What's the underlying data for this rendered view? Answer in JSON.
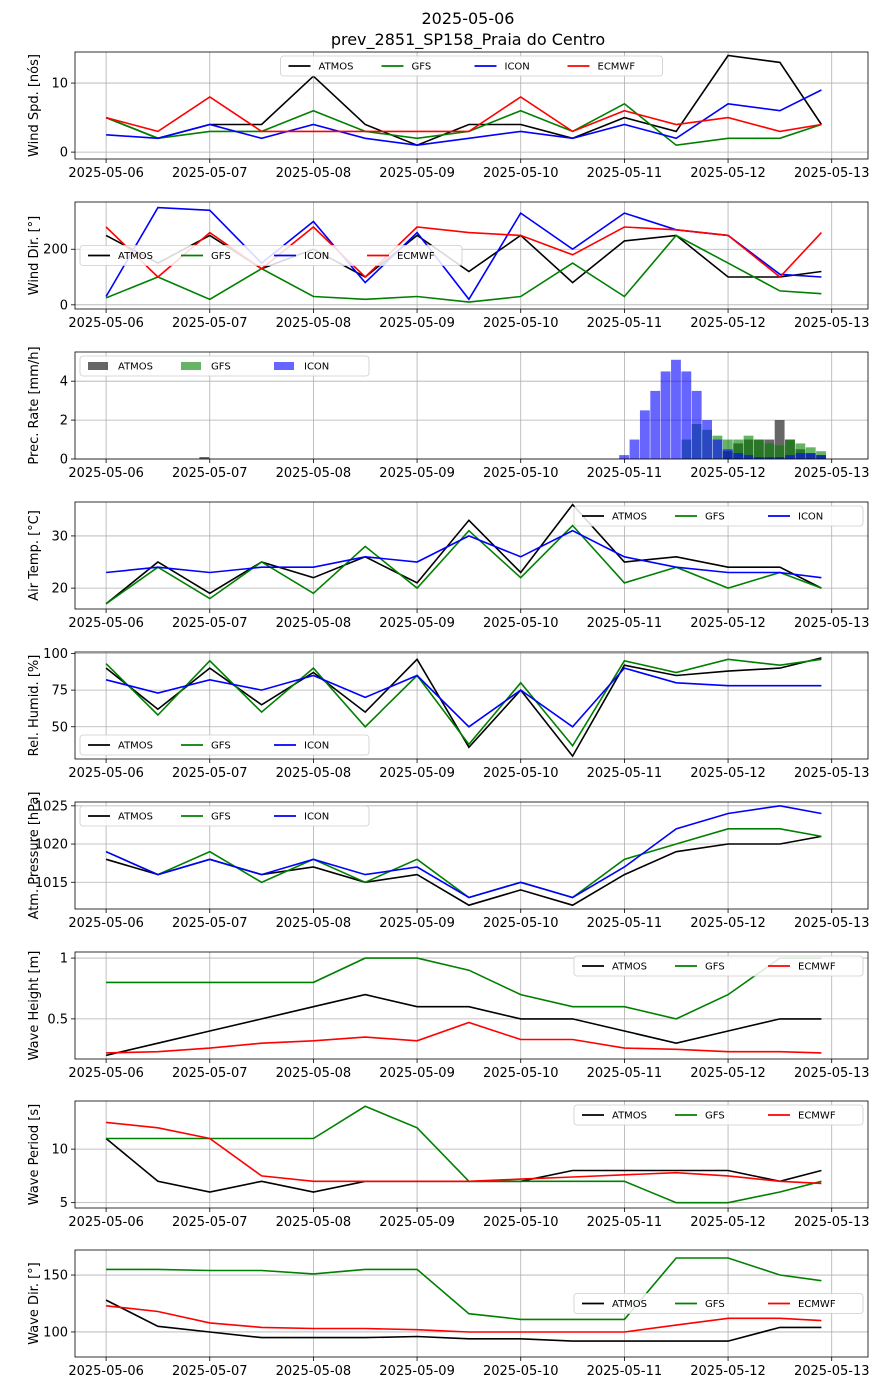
{
  "title": "2025-05-06",
  "subtitle": "prev_2851_SP158_Praia do Centro",
  "x_ticks": [
    "2025-05-06",
    "2025-05-07",
    "2025-05-08",
    "2025-05-09",
    "2025-05-10",
    "2025-05-11",
    "2025-05-12",
    "2025-05-13"
  ],
  "colors": {
    "ATMOS": "#000000",
    "GFS": "#008000",
    "ICON": "#0000ff",
    "ECMWF": "#ff0000"
  },
  "chart_data": [
    {
      "type": "line",
      "ylabel": "Wind Spd. [nós]",
      "ylim": [
        -1,
        14.5
      ],
      "yticks": [
        0,
        10
      ],
      "grid": true,
      "legend": "top-center",
      "x": [
        0,
        0.5,
        1,
        1.5,
        2,
        2.5,
        3,
        3.5,
        4,
        4.5,
        5,
        5.5,
        6,
        6.5,
        6.9
      ],
      "series": [
        {
          "name": "ATMOS",
          "values": [
            5,
            2,
            4,
            4,
            11,
            4,
            1,
            4,
            4,
            2,
            5,
            3,
            14,
            13,
            4
          ]
        },
        {
          "name": "GFS",
          "values": [
            5,
            2,
            3,
            3,
            6,
            3,
            2,
            3,
            6,
            3,
            7,
            1,
            2,
            2,
            4
          ]
        },
        {
          "name": "ICON",
          "values": [
            2.5,
            2,
            4,
            2,
            4,
            2,
            1,
            2,
            3,
            2,
            4,
            2,
            7,
            6,
            9
          ]
        },
        {
          "name": "ECMWF",
          "values": [
            5,
            3,
            8,
            3,
            3,
            3,
            3,
            3,
            8,
            3,
            6,
            4,
            5,
            3,
            4
          ]
        }
      ]
    },
    {
      "type": "line",
      "ylabel": "Wind Dir. [°]",
      "ylim": [
        -15,
        370
      ],
      "yticks": [
        0,
        200
      ],
      "grid": true,
      "legend": "middle-left",
      "x": [
        0,
        0.5,
        1,
        1.5,
        2,
        2.5,
        3,
        3.5,
        4,
        4.5,
        5,
        5.5,
        6,
        6.5,
        6.9
      ],
      "series": [
        {
          "name": "ATMOS",
          "values": [
            250,
            150,
            250,
            130,
            200,
            100,
            250,
            120,
            250,
            80,
            230,
            250,
            100,
            100,
            120
          ]
        },
        {
          "name": "GFS",
          "values": [
            25,
            100,
            20,
            130,
            30,
            20,
            30,
            10,
            30,
            150,
            30,
            250,
            150,
            50,
            40
          ]
        },
        {
          "name": "ICON",
          "values": [
            30,
            350,
            340,
            150,
            300,
            80,
            260,
            20,
            330,
            200,
            330,
            270,
            250,
            110,
            100
          ]
        },
        {
          "name": "ECMWF",
          "values": [
            280,
            100,
            260,
            130,
            280,
            100,
            280,
            260,
            250,
            180,
            280,
            270,
            250,
            100,
            260
          ]
        }
      ]
    },
    {
      "type": "bar",
      "ylabel": "Prec. Rate [mm/h]",
      "ylim": [
        0,
        5.5
      ],
      "yticks": [
        0,
        2,
        4
      ],
      "grid": true,
      "legend": "top-left",
      "x": [
        0.95,
        5.0,
        5.1,
        5.2,
        5.3,
        5.4,
        5.5,
        5.6,
        5.7,
        5.8,
        5.9,
        6.0,
        6.1,
        6.2,
        6.3,
        6.4,
        6.5,
        6.6,
        6.7,
        6.8,
        6.9
      ],
      "series": [
        {
          "name": "ATMOS",
          "values": [
            0.1,
            0,
            0,
            0,
            0,
            0,
            0,
            0,
            0,
            0,
            0,
            0.4,
            0.8,
            1.0,
            1.0,
            1.0,
            2.0,
            1.0,
            0.5,
            0.3,
            0.2
          ]
        },
        {
          "name": "GFS",
          "values": [
            0,
            0,
            0,
            0,
            0,
            0,
            0,
            1.0,
            1.8,
            1.5,
            1.2,
            1.0,
            1.0,
            1.2,
            1.0,
            0.8,
            0.7,
            1.0,
            0.8,
            0.6,
            0.4
          ]
        },
        {
          "name": "ICON",
          "values": [
            0,
            0.2,
            1.0,
            2.5,
            3.5,
            4.5,
            5.1,
            4.5,
            3.5,
            2.0,
            1.0,
            0.5,
            0.3,
            0.2,
            0.1,
            0.1,
            0.1,
            0.2,
            0.3,
            0.3,
            0.2
          ]
        }
      ]
    },
    {
      "type": "line",
      "ylabel": "Air Temp. [°C]",
      "ylim": [
        16,
        36.5
      ],
      "yticks": [
        20,
        30
      ],
      "grid": true,
      "legend": "top-right",
      "x": [
        0,
        0.5,
        1,
        1.5,
        2,
        2.5,
        3,
        3.5,
        4,
        4.5,
        5,
        5.5,
        6,
        6.5,
        6.9
      ],
      "series": [
        {
          "name": "ATMOS",
          "values": [
            17,
            25,
            19,
            25,
            22,
            26,
            21,
            33,
            23,
            36,
            25,
            26,
            24,
            24,
            20
          ]
        },
        {
          "name": "GFS",
          "values": [
            17,
            24,
            18,
            25,
            19,
            28,
            20,
            31,
            22,
            32,
            21,
            24,
            20,
            23,
            20
          ]
        },
        {
          "name": "ICON",
          "values": [
            23,
            24,
            23,
            24,
            24,
            26,
            25,
            30,
            26,
            31,
            26,
            24,
            23,
            23,
            22
          ]
        }
      ]
    },
    {
      "type": "line",
      "ylabel": "Rel. Humid. [%]",
      "ylim": [
        28,
        101
      ],
      "yticks": [
        50,
        75,
        100
      ],
      "grid": true,
      "legend": "bottom-left",
      "x": [
        0,
        0.5,
        1,
        1.5,
        2,
        2.5,
        3,
        3.5,
        4,
        4.5,
        5,
        5.5,
        6,
        6.5,
        6.9
      ],
      "series": [
        {
          "name": "ATMOS",
          "values": [
            90,
            62,
            90,
            65,
            87,
            60,
            96,
            36,
            75,
            30,
            92,
            85,
            88,
            90,
            97
          ]
        },
        {
          "name": "GFS",
          "values": [
            93,
            58,
            95,
            60,
            90,
            50,
            85,
            38,
            80,
            37,
            95,
            87,
            96,
            92,
            96
          ]
        },
        {
          "name": "ICON",
          "values": [
            82,
            73,
            82,
            75,
            85,
            70,
            85,
            50,
            75,
            50,
            90,
            80,
            78,
            78,
            78
          ]
        }
      ]
    },
    {
      "type": "line",
      "ylabel": "Atm. Pressure [hPa]",
      "ylim": [
        1011.5,
        1025.5
      ],
      "yticks": [
        1015,
        1020,
        1025
      ],
      "grid": true,
      "legend": "top-left",
      "x": [
        0,
        0.5,
        1,
        1.5,
        2,
        2.5,
        3,
        3.5,
        4,
        4.5,
        5,
        5.5,
        6,
        6.5,
        6.9
      ],
      "series": [
        {
          "name": "ATMOS",
          "values": [
            1018,
            1016,
            1018,
            1016,
            1017,
            1015,
            1016,
            1012,
            1014,
            1012,
            1016,
            1019,
            1020,
            1020,
            1021
          ]
        },
        {
          "name": "GFS",
          "values": [
            1019,
            1016,
            1019,
            1015,
            1018,
            1015,
            1018,
            1013,
            1015,
            1013,
            1018,
            1020,
            1022,
            1022,
            1021
          ]
        },
        {
          "name": "ICON",
          "values": [
            1019,
            1016,
            1018,
            1016,
            1018,
            1016,
            1017,
            1013,
            1015,
            1013,
            1017,
            1022,
            1024,
            1025,
            1024
          ]
        }
      ]
    },
    {
      "type": "line",
      "ylabel": "Wave Height [m]",
      "ylim": [
        0.17,
        1.05
      ],
      "yticks": [
        0.5,
        1.0
      ],
      "grid": true,
      "legend": "top-right",
      "x": [
        0,
        0.5,
        1,
        1.5,
        2,
        2.5,
        3,
        3.5,
        4,
        4.5,
        5,
        5.5,
        6,
        6.5,
        6.9
      ],
      "series": [
        {
          "name": "ATMOS",
          "values": [
            0.2,
            0.3,
            0.4,
            0.5,
            0.6,
            0.7,
            0.6,
            0.6,
            0.5,
            0.5,
            0.4,
            0.3,
            0.4,
            0.5,
            0.5
          ]
        },
        {
          "name": "GFS",
          "values": [
            0.8,
            0.8,
            0.8,
            0.8,
            0.8,
            1.0,
            1.0,
            0.9,
            0.7,
            0.6,
            0.6,
            0.5,
            0.7,
            1.0,
            1.0
          ]
        },
        {
          "name": "ECMWF",
          "values": [
            0.22,
            0.23,
            0.26,
            0.3,
            0.32,
            0.35,
            0.32,
            0.47,
            0.33,
            0.33,
            0.26,
            0.25,
            0.23,
            0.23,
            0.22
          ]
        }
      ]
    },
    {
      "type": "line",
      "ylabel": "Wave Period [s]",
      "ylim": [
        4.5,
        14.5
      ],
      "yticks": [
        5,
        10
      ],
      "grid": true,
      "legend": "top-right",
      "x": [
        0,
        0.5,
        1,
        1.5,
        2,
        2.5,
        3,
        3.5,
        4,
        4.5,
        5,
        5.5,
        6,
        6.5,
        6.9
      ],
      "series": [
        {
          "name": "ATMOS",
          "values": [
            11,
            7,
            6,
            7,
            6,
            7,
            7,
            7,
            7,
            8,
            8,
            8,
            8,
            7,
            8
          ]
        },
        {
          "name": "GFS",
          "values": [
            11,
            11,
            11,
            11,
            11,
            14,
            12,
            7,
            7,
            7,
            7,
            5,
            5,
            6,
            7
          ]
        },
        {
          "name": "ECMWF",
          "values": [
            12.5,
            12,
            11,
            7.5,
            7,
            7,
            7,
            7,
            7.2,
            7.4,
            7.6,
            7.8,
            7.5,
            7,
            6.8
          ]
        }
      ]
    },
    {
      "type": "line",
      "ylabel": "Wave Dir. [°]",
      "ylim": [
        78,
        172
      ],
      "yticks": [
        100,
        150
      ],
      "grid": true,
      "legend": "middle-right",
      "x": [
        0,
        0.5,
        1,
        1.5,
        2,
        2.5,
        3,
        3.5,
        4,
        4.5,
        5,
        5.5,
        6,
        6.5,
        6.9
      ],
      "series": [
        {
          "name": "ATMOS",
          "values": [
            128,
            105,
            100,
            95,
            95,
            95,
            96,
            94,
            94,
            92,
            92,
            92,
            92,
            104,
            104
          ]
        },
        {
          "name": "GFS",
          "values": [
            155,
            155,
            154,
            154,
            151,
            155,
            155,
            116,
            111,
            111,
            111,
            165,
            165,
            150,
            145
          ]
        },
        {
          "name": "ECMWF",
          "values": [
            123,
            118,
            108,
            104,
            103,
            103,
            102,
            100,
            100,
            100,
            100,
            106,
            112,
            112,
            110
          ]
        }
      ]
    }
  ]
}
